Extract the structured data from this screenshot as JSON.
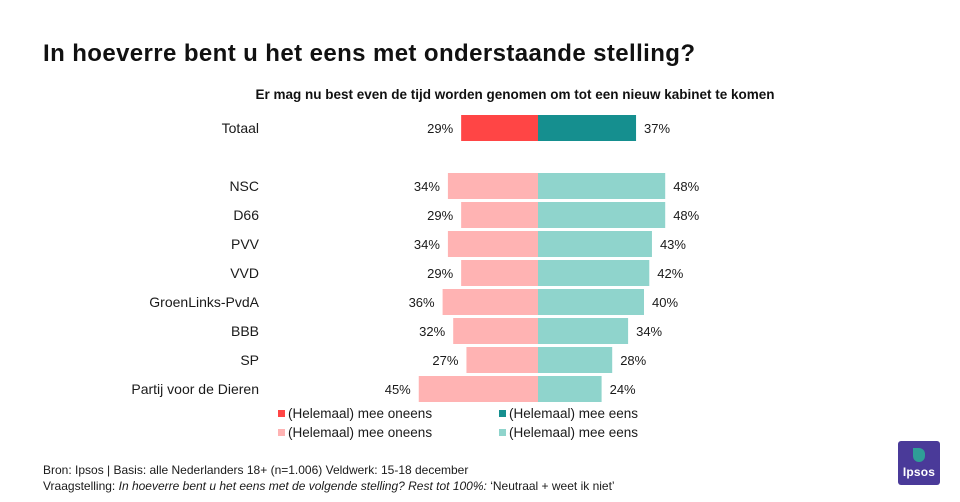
{
  "title": "In hoeverre bent u het eens met onderstaande stelling?",
  "subtitle": "Er mag  nu best even de tijd worden genomen om  tot een nieuw kabinet te komen",
  "chart_data": {
    "type": "bar",
    "orientation": "horizontal-diverging",
    "categories": [
      "Totaal",
      "NSC",
      "D66",
      "PVV",
      "VVD",
      "GroenLinks-PvdA",
      "BBB",
      "SP",
      "Partij voor de Dieren"
    ],
    "series": [
      {
        "name": "(Helemaal) mee oneens",
        "values": [
          29,
          34,
          29,
          34,
          29,
          36,
          32,
          27,
          45
        ],
        "labels": [
          "29%",
          "34%",
          "29%",
          "34%",
          "29%",
          "36%",
          "32%",
          "27%",
          "45%"
        ]
      },
      {
        "name": "(Helemaal) mee eens",
        "values": [
          37,
          48,
          48,
          43,
          42,
          40,
          34,
          28,
          24
        ],
        "labels": [
          "37%",
          "48%",
          "48%",
          "43%",
          "42%",
          "40%",
          "34%",
          "28%",
          "24%"
        ]
      }
    ],
    "legend": [
      {
        "label": "(Helemaal) mee oneens",
        "color": "#ff4545"
      },
      {
        "label": "(Helemaal) mee eens",
        "color": "#158f8f"
      },
      {
        "label": "(Helemaal) mee oneens",
        "color": "#ffb3b3"
      },
      {
        "label": "(Helemaal) mee eens",
        "color": "#8fd4cc"
      }
    ],
    "colors": {
      "totaal_oneens": "#ff4545",
      "totaal_eens": "#158f8f",
      "party_oneens": "#ffb3b3",
      "party_eens": "#8fd4cc"
    },
    "legend_position": "bottom"
  },
  "footer": {
    "line1": "Bron: Ipsos | Basis: alle Nederlanders  18+ (n=1.006) Veldwerk:  15-18  december",
    "line2_prefix": "Vraagstelling: ",
    "line2_question": "In hoeverre  bent u het eens met de volgende  stelling? Rest tot 100%:",
    "line2_suffix": "  ‘Neutraal + weet  ik niet’"
  },
  "logo": {
    "text": "Ipsos"
  }
}
